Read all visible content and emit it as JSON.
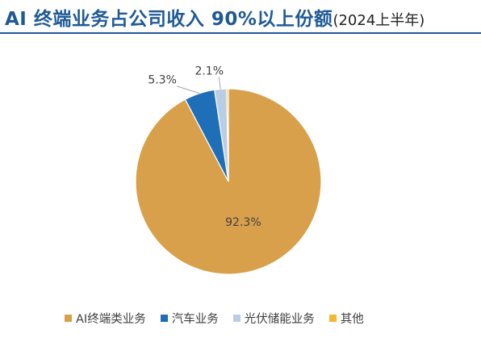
{
  "title": {
    "main": "AI 终端业务占公司收入 90%以上份额",
    "sub": "(2024上半年)"
  },
  "chart_data": {
    "type": "pie",
    "categories": [
      "AI终端类业务",
      "汽车业务",
      "光伏储能业务",
      "其他"
    ],
    "values": [
      92.3,
      5.3,
      2.1,
      0.3
    ],
    "data_labels": [
      "92.3%",
      "5.3%",
      "2.1%",
      ""
    ],
    "colors": [
      "#D9A04C",
      "#1F6EB8",
      "#B9CDE5",
      "#F5B731"
    ],
    "legend_position": "bottom"
  }
}
